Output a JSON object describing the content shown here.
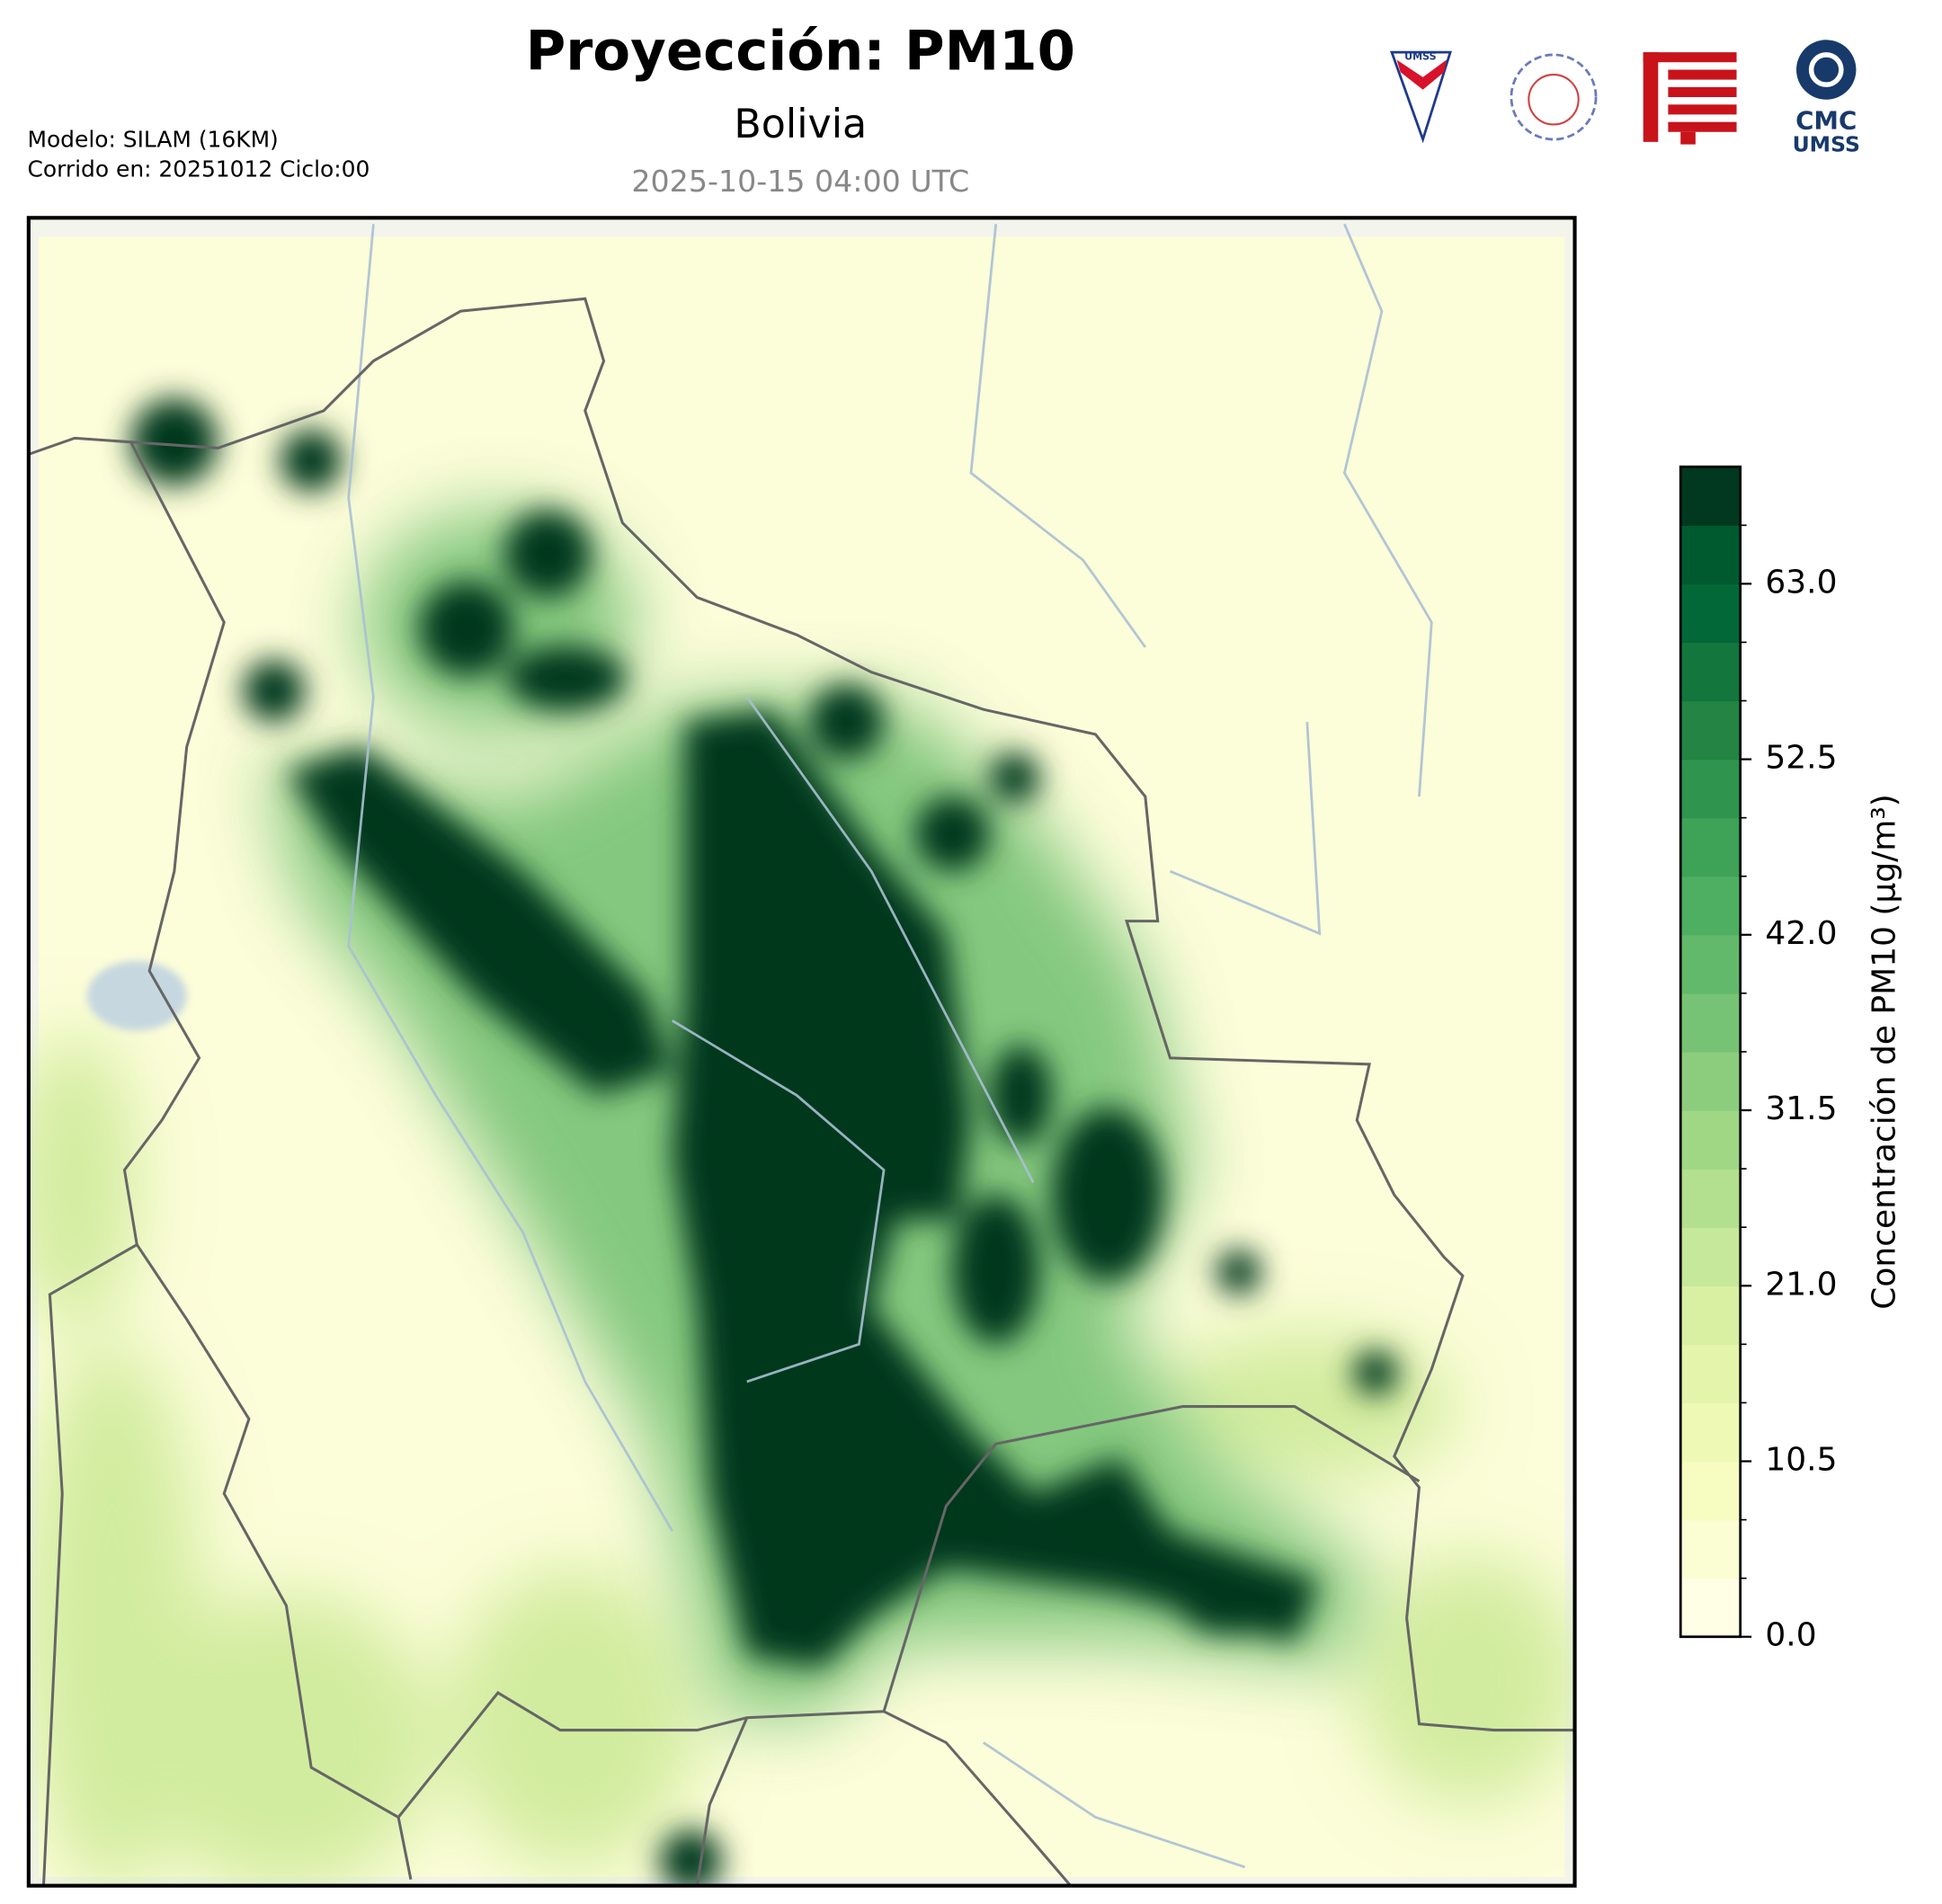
{
  "header": {
    "title": "Proyección: PM10",
    "subtitle": "Bolivia",
    "valid_time": "2025-10-15 04:00 UTC",
    "model": "Modelo: SILAM (16KM)",
    "run": "Corrido en: 20251012 Ciclo:00"
  },
  "logos": {
    "shield": "UMSS",
    "cmc": "CMC",
    "cmc_sub": "UMSS"
  },
  "colorbar": {
    "label": "Concentración de PM10 (µg/m³)",
    "clim": [
      0,
      70
    ],
    "ticks": [
      {
        "value": 0,
        "label": "0.0"
      },
      10.5,
      {
        "value": 21,
        "label": "21.0"
      },
      31.5,
      {
        "value": 42,
        "label": "42.0"
      },
      52.5,
      {
        "value": 63,
        "label": "63.0"
      }
    ],
    "colors": [
      "#ffffe5",
      "#fbfdd3",
      "#f7fcc1",
      "#eff9b6",
      "#e4f4ab",
      "#d9f0a3",
      "#c6e89a",
      "#b2e08f",
      "#9fd785",
      "#8ccd7d",
      "#77c375",
      "#63b96b",
      "#4eaf62",
      "#3ea257",
      "#2f944e",
      "#238443",
      "#13763d",
      "#036837",
      "#005a30",
      "#00391f"
    ]
  }
}
